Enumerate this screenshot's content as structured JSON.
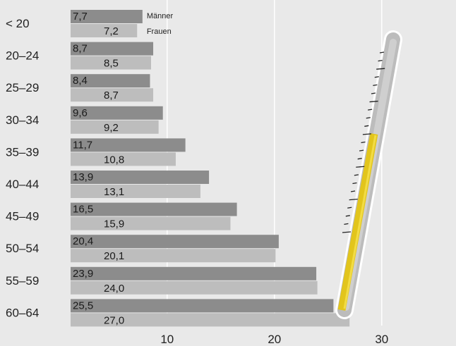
{
  "chart_data": {
    "type": "bar",
    "orientation": "horizontal",
    "categories": [
      "< 20",
      "20–24",
      "25–29",
      "30–34",
      "35–39",
      "40–44",
      "45–49",
      "50–54",
      "55–59",
      "60–64"
    ],
    "series": [
      {
        "name": "Männer",
        "color": "#8c8c8c",
        "values": [
          7.7,
          8.7,
          8.4,
          9.6,
          11.7,
          13.9,
          16.5,
          20.4,
          23.9,
          25.5
        ]
      },
      {
        "name": "Frauen",
        "color": "#bdbdbd",
        "values": [
          7.2,
          8.5,
          8.7,
          9.2,
          10.8,
          13.1,
          15.9,
          20.1,
          24.0,
          27.0
        ]
      }
    ],
    "value_labels": {
      "Männer": [
        "7,7",
        "8,7",
        "8,4",
        "9,6",
        "11,7",
        "13,9",
        "16,5",
        "20,4",
        "23,9",
        "25,5"
      ],
      "Frauen": [
        "7,2",
        "8,5",
        "8,7",
        "9,2",
        "10,8",
        "13,1",
        "15,9",
        "20,1",
        "24,0",
        "27,0"
      ]
    },
    "x_ticks": [
      10,
      20,
      30
    ],
    "x_tick_labels": [
      "10",
      "20",
      "30"
    ],
    "xlim": [
      1,
      36
    ],
    "grid": "vertical gridlines at 10, 20, 30",
    "legend": {
      "placement": "inline next to first bar pair",
      "entries": [
        "Männer",
        "Frauen"
      ]
    },
    "decoration": "thermometer illustration (yellow mercury) on the right",
    "colors": {
      "background": "#e9e9e9",
      "gridline": "#ffffff",
      "mercury": "#e2c51c"
    },
    "title": "",
    "xlabel": "",
    "ylabel": ""
  }
}
